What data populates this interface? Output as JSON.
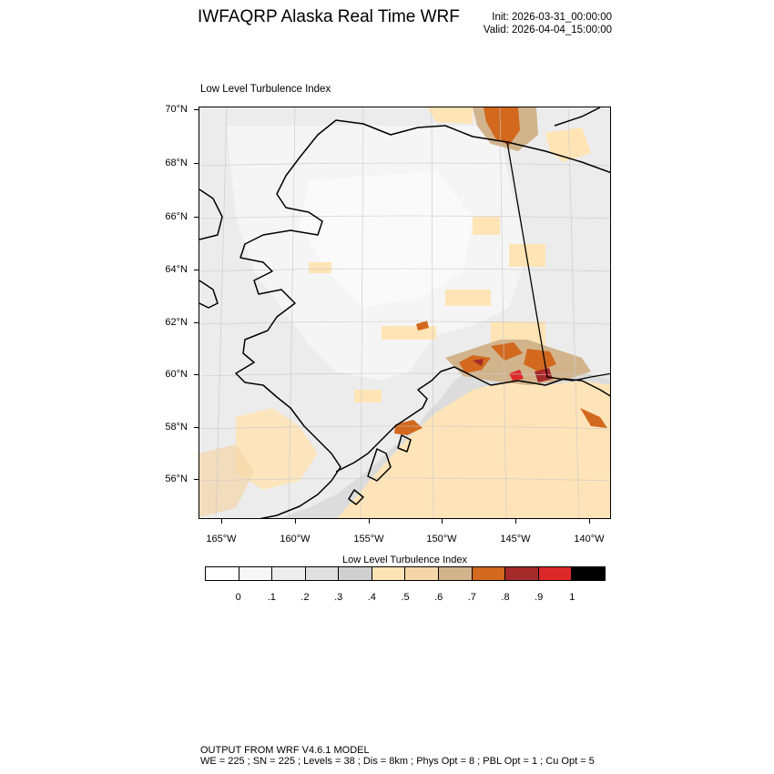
{
  "header": {
    "title": "IWFAQRP Alaska Real Time WRF",
    "init": "Init: 2026-03-31_00:00:00",
    "valid": "Valid: 2026-04-04_15:00:00"
  },
  "map": {
    "subtitle": "Low Level Turbulence Index",
    "region": "Alaska",
    "lat_labels": [
      "70°N",
      "68°N",
      "66°N",
      "64°N",
      "62°N",
      "60°N",
      "58°N",
      "56°N"
    ],
    "lon_labels": [
      "165°W",
      "160°W",
      "155°W",
      "150°W",
      "145°W",
      "140°W"
    ],
    "colors": {
      "land_outline": "#000000",
      "graticule": "#c8c8c8"
    }
  },
  "colorbar": {
    "title": "Low Level Turbulence Index",
    "labels": [
      "0",
      ".1",
      ".2",
      ".3",
      ".4",
      ".5",
      ".6",
      ".7",
      ".8",
      ".9",
      "1"
    ],
    "colors": [
      "#ffffff",
      "#f7f7f7",
      "#eeeeee",
      "#e0e0e0",
      "#d0d0d0",
      "#ffe4b5",
      "#f5d6a8",
      "#d2b48c",
      "#d2691e",
      "#a52a2a",
      "#dc2828",
      "#000000"
    ]
  },
  "footer": {
    "line1": "OUTPUT FROM WRF V4.6.1 MODEL",
    "line2": "WE = 225 ; SN = 225 ; Levels = 38 ; Dis = 8km ; Phys Opt = 8 ; PBL Opt = 1 ; Cu Opt = 5"
  }
}
